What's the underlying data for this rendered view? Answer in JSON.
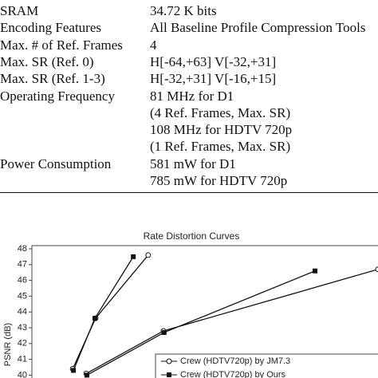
{
  "table": {
    "rows": [
      {
        "label": "SRAM",
        "lines": [
          "34.72 K bits"
        ]
      },
      {
        "label": "Encoding Features",
        "lines": [
          "All Baseline Profile Compression Tools"
        ]
      },
      {
        "label": "Max. # of Ref. Frames",
        "lines": [
          "4"
        ]
      },
      {
        "label": "Max. SR (Ref. 0)",
        "lines": [
          "H[-64,+63] V[-32,+31]"
        ]
      },
      {
        "label": "Max. SR (Ref. 1-3)",
        "lines": [
          "H[-32,+31] V[-16,+15]"
        ]
      },
      {
        "label": "Operating Frequency",
        "lines": [
          "81 MHz for D1",
          "(4 Ref. Frames, Max. SR)",
          "108 MHz for HDTV 720p",
          "(1 Ref. Frames, Max. SR)"
        ]
      },
      {
        "label": "Power Consumption",
        "lines": [
          "581 mW for D1",
          "785 mW for HDTV 720p"
        ]
      }
    ]
  },
  "chart_data": {
    "type": "line",
    "title": "Rate Distortion Curves",
    "y_label": "PSNR (dB)",
    "xlim": [
      0,
      100
    ],
    "ylim": [
      39,
      48
    ],
    "yticks": [
      40,
      41,
      42,
      43,
      44,
      45,
      46,
      47,
      48
    ],
    "series": [
      {
        "color": "#111111",
        "marker": "open-circle",
        "x": [
          11.8,
          18.4,
          33.6
        ],
        "values": [
          40.4,
          43.6,
          47.6
        ]
      },
      {
        "color": "#111111",
        "marker": "filled-square",
        "x": [
          12.0,
          18.2,
          29.3
        ],
        "values": [
          40.3,
          43.6,
          47.5
        ]
      },
      {
        "name": "Crew (HDTV720p) by JM7.3",
        "color": "#111111",
        "marker": "open-circle",
        "x": [
          15.7,
          38.0,
          100
        ],
        "values": [
          40.1,
          42.8,
          46.7
        ]
      },
      {
        "name": "Crew (HDTV720p) by Ours",
        "color": "#111111",
        "marker": "filled-square",
        "x": [
          15.9,
          38.2,
          81.8
        ],
        "values": [
          40.0,
          42.7,
          46.6
        ]
      }
    ]
  }
}
